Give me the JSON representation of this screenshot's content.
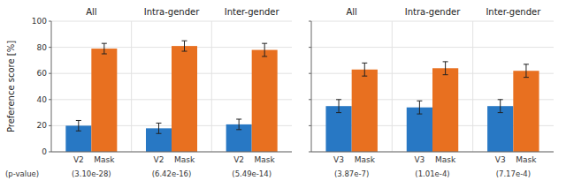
{
  "chart_data": [
    {
      "type": "bar",
      "categories": [
        "All",
        "Intra-gender",
        "Inter-gender"
      ],
      "series": [
        {
          "name": "V2",
          "color": "#2878C4",
          "values": [
            20,
            18,
            21
          ],
          "errors": [
            4,
            4,
            4
          ]
        },
        {
          "name": "Mask",
          "color": "#E87020",
          "values": [
            79,
            81,
            78
          ],
          "errors": [
            4,
            4,
            5
          ]
        }
      ],
      "y_label": "Preference score [%]",
      "annotations": {
        "label": "(p-value)",
        "texts": [
          "(3.10e-28)",
          "(6.42e-16)",
          "(5.49e-14)"
        ]
      },
      "ylim": [
        0,
        100
      ],
      "yticks": [
        0,
        20,
        40,
        60,
        80,
        100
      ],
      "grid": true
    },
    {
      "type": "bar",
      "categories": [
        "All",
        "Intra-gender",
        "Inter-gender"
      ],
      "series": [
        {
          "name": "V3",
          "color": "#2878C4",
          "values": [
            35,
            34,
            35
          ],
          "errors": [
            5,
            5,
            5
          ]
        },
        {
          "name": "Mask",
          "color": "#E87020",
          "values": [
            63,
            64,
            62
          ],
          "errors": [
            5,
            5,
            5
          ]
        }
      ],
      "annotations": {
        "texts": [
          "(3.87e-7)",
          "(1.01e-4)",
          "(7.17e-4)"
        ]
      },
      "ylim": [
        0,
        100
      ],
      "yticks": [
        0,
        20,
        40,
        60,
        80,
        100
      ],
      "grid": true,
      "tick_labels": "x"
    }
  ]
}
